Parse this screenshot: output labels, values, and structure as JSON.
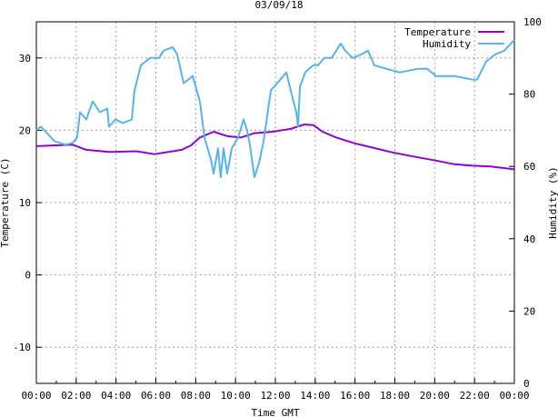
{
  "chart_data": {
    "type": "line",
    "title": "03/09/18",
    "xlabel": "Time GMT",
    "ylabel": "Temperature (C)",
    "y2label": "Humidity (%)",
    "xlim": [
      0,
      24
    ],
    "ylim": [
      -15,
      35
    ],
    "y2lim": [
      0,
      100
    ],
    "grid": true,
    "legend_position": "top-right",
    "x_ticks": [
      {
        "v": 0,
        "label": "00:00"
      },
      {
        "v": 2,
        "label": "02:00"
      },
      {
        "v": 4,
        "label": "04:00"
      },
      {
        "v": 6,
        "label": "06:00"
      },
      {
        "v": 8,
        "label": "08:00"
      },
      {
        "v": 10,
        "label": "10:00"
      },
      {
        "v": 12,
        "label": "12:00"
      },
      {
        "v": 14,
        "label": "14:00"
      },
      {
        "v": 16,
        "label": "16:00"
      },
      {
        "v": 18,
        "label": "18:00"
      },
      {
        "v": 20,
        "label": "20:00"
      },
      {
        "v": 22,
        "label": "22:00"
      },
      {
        "v": 24,
        "label": "00:00"
      }
    ],
    "y_ticks": [
      {
        "v": -10,
        "label": "-10"
      },
      {
        "v": 0,
        "label": "0"
      },
      {
        "v": 10,
        "label": "10"
      },
      {
        "v": 20,
        "label": "20"
      },
      {
        "v": 30,
        "label": "30"
      }
    ],
    "y2_ticks": [
      {
        "v": 0,
        "label": "0"
      },
      {
        "v": 20,
        "label": "20"
      },
      {
        "v": 40,
        "label": "40"
      },
      {
        "v": 60,
        "label": "60"
      },
      {
        "v": 80,
        "label": "80"
      },
      {
        "v": 100,
        "label": "100"
      }
    ],
    "series": [
      {
        "name": "Temperature",
        "axis": "y",
        "color": "#9400d3",
        "x": [
          0,
          1.82,
          2.51,
          3.65,
          5.02,
          5.93,
          7.3,
          7.76,
          8.21,
          8.9,
          9.58,
          10.26,
          10.95,
          11.86,
          12.77,
          13.46,
          13.92,
          14.37,
          15.06,
          15.97,
          16.88,
          17.79,
          18.7,
          20.07,
          20.99,
          21.9,
          22.81,
          24
        ],
        "values": [
          17.8,
          18,
          17.3,
          17,
          17.1,
          16.7,
          17.3,
          17.9,
          19,
          19.8,
          19.2,
          19,
          19.6,
          19.8,
          20.2,
          20.8,
          20.7,
          19.8,
          19,
          18.2,
          17.6,
          17,
          16.5,
          15.8,
          15.3,
          15.1,
          15,
          14.6
        ]
      },
      {
        "name": "Humidity",
        "axis": "y2",
        "color": "#56b4e9",
        "x": [
          0,
          0.23,
          0.91,
          1.46,
          1.82,
          2.05,
          2.19,
          2.51,
          2.83,
          3.19,
          3.56,
          3.65,
          3.97,
          4.33,
          4.79,
          4.93,
          5.25,
          5.7,
          6.16,
          6.39,
          6.84,
          7.07,
          7.39,
          7.85,
          8.21,
          8.44,
          8.76,
          8.9,
          9.12,
          9.26,
          9.4,
          9.58,
          9.81,
          10.13,
          10.4,
          10.58,
          10.72,
          10.95,
          11.18,
          11.41,
          11.77,
          12.09,
          12.55,
          12.77,
          13.05,
          13.14,
          13.23,
          13.5,
          13.69,
          13.92,
          14.14,
          14.46,
          14.83,
          15.28,
          15.51,
          15.88,
          16.33,
          16.65,
          16.97,
          17.56,
          18.25,
          19.16,
          19.62,
          20.07,
          20.99,
          21.9,
          22.13,
          22.58,
          23.04,
          23.49,
          24
        ],
        "values": [
          70,
          71,
          67,
          66,
          66.5,
          68,
          75,
          73,
          78,
          75,
          76,
          71,
          73,
          72,
          73,
          81,
          88,
          90,
          90,
          92,
          93,
          91,
          83,
          85,
          78,
          68,
          62,
          58,
          65,
          57,
          65,
          58,
          65,
          68,
          73,
          70,
          66,
          57,
          61,
          67,
          81,
          83,
          86,
          81,
          75,
          71,
          82,
          86,
          87,
          88,
          88,
          90,
          90,
          94,
          92,
          90,
          91,
          92,
          88,
          87,
          86,
          87,
          87,
          85,
          85,
          84,
          84,
          89,
          91,
          92,
          95
        ]
      }
    ]
  }
}
